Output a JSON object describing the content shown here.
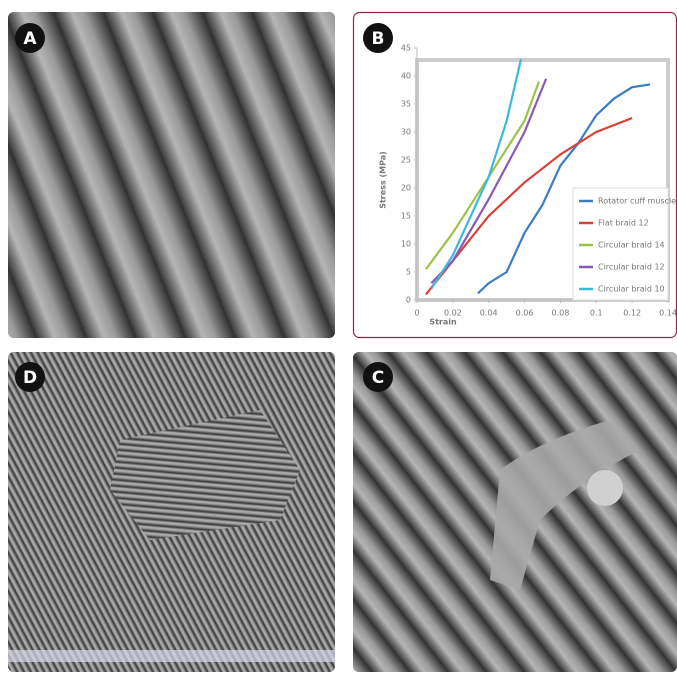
{
  "panels": [
    {
      "label": "A"
    },
    {
      "label": "B"
    },
    {
      "label": "D"
    },
    {
      "label": "C"
    }
  ],
  "chart_data": {
    "type": "line",
    "xlabel": "Strain",
    "ylabel": "Stress (MPa)",
    "xlim": [
      0,
      0.14
    ],
    "xticks": [
      0,
      0.02,
      0.04,
      0.06,
      0.08,
      0.1,
      0.12,
      0.14
    ],
    "ylim": [
      0,
      45
    ],
    "yticks": [
      0,
      5,
      10,
      15,
      20,
      25,
      30,
      35,
      40,
      45
    ],
    "legend": "lower right",
    "series": [
      {
        "name": "Rotator cuff muscle",
        "color": "#3b7dc4",
        "x": [
          0.034,
          0.04,
          0.05,
          0.06,
          0.07,
          0.08,
          0.09,
          0.1,
          0.11,
          0.12,
          0.13
        ],
        "values": [
          1.2,
          3,
          5,
          12,
          17,
          24,
          28,
          33,
          36,
          38,
          38.5
        ]
      },
      {
        "name": "Flat braid 12",
        "color": "#d9413a",
        "x": [
          0.005,
          0.02,
          0.04,
          0.06,
          0.08,
          0.1,
          0.12
        ],
        "values": [
          1,
          7,
          15,
          21,
          26,
          30,
          32.5
        ]
      },
      {
        "name": "Circular braid 14",
        "color": "#9cc24a",
        "x": [
          0.005,
          0.02,
          0.04,
          0.06,
          0.068
        ],
        "values": [
          5.5,
          12,
          22,
          32,
          39
        ]
      },
      {
        "name": "Circular braid 12",
        "color": "#8a5bb5",
        "x": [
          0.008,
          0.02,
          0.04,
          0.06,
          0.072
        ],
        "values": [
          3,
          7,
          18,
          30,
          39.5
        ]
      },
      {
        "name": "Circular braid 10",
        "color": "#3fb8dd",
        "x": [
          0.008,
          0.02,
          0.04,
          0.05,
          0.058
        ],
        "values": [
          2,
          8,
          22,
          32,
          43
        ]
      }
    ]
  }
}
